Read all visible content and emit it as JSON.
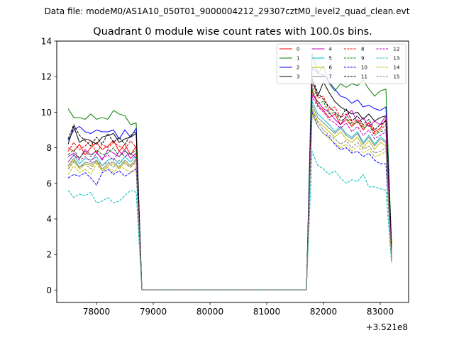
{
  "chart_data": {
    "type": "line",
    "suptitle": "Data file: modeM0/AS1A10_050T01_9000004212_29307cztM0_level2_quad_clean.evt",
    "title": "Quadrant 0 module wise count rates with 100.0s bins.",
    "xlabel": "",
    "ylabel": "",
    "x_offset_label": "+3.521e8",
    "xlim": [
      77300,
      83500
    ],
    "ylim": [
      -0.7,
      14
    ],
    "x_ticks": [
      78000,
      79000,
      80000,
      81000,
      82000,
      83000
    ],
    "x_tick_labels": [
      "78000",
      "79000",
      "80000",
      "81000",
      "82000",
      "83000"
    ],
    "y_ticks": [
      0,
      2,
      4,
      6,
      8,
      10,
      12,
      14
    ],
    "y_tick_labels": [
      "0",
      "2",
      "4",
      "6",
      "8",
      "10",
      "12",
      "14"
    ],
    "grid": false,
    "legend_position": "top-right",
    "legend_columns": 4,
    "x": [
      77500,
      77600,
      77700,
      77800,
      77900,
      78000,
      78100,
      78200,
      78300,
      78400,
      78500,
      78600,
      78700,
      78800,
      78900,
      79000,
      79100,
      79200,
      79300,
      79400,
      79500,
      79600,
      79700,
      79800,
      79900,
      80000,
      80100,
      80200,
      80300,
      80400,
      80500,
      80600,
      80700,
      80800,
      80900,
      81000,
      81100,
      81200,
      81300,
      81400,
      81500,
      81600,
      81700,
      81800,
      81900,
      82000,
      82100,
      82200,
      82300,
      82400,
      82500,
      82600,
      82700,
      82800,
      82900,
      83000,
      83100,
      83200
    ],
    "series": [
      {
        "name": "0",
        "color": "#ff0000",
        "style": "solid",
        "values": [
          8.0,
          7.8,
          8.2,
          7.6,
          8.0,
          8.3,
          7.9,
          8.1,
          8.4,
          7.8,
          8.2,
          7.6,
          8.1,
          0,
          0,
          0,
          0,
          0,
          0,
          0,
          0,
          0,
          0,
          0,
          0,
          0,
          0,
          0,
          0,
          0,
          0,
          0,
          0,
          0,
          0,
          0,
          0,
          0,
          0,
          0,
          0,
          0,
          0,
          11.2,
          10.4,
          10.1,
          9.7,
          9.9,
          9.3,
          9.6,
          9.2,
          9.5,
          9.0,
          9.4,
          8.9,
          9.1,
          9.6,
          2.0
        ]
      },
      {
        "name": "1",
        "color": "#008000",
        "style": "solid",
        "values": [
          10.2,
          9.7,
          9.7,
          9.6,
          9.9,
          9.6,
          9.7,
          9.6,
          10.1,
          9.9,
          9.8,
          9.3,
          9.4,
          0,
          0,
          0,
          0,
          0,
          0,
          0,
          0,
          0,
          0,
          0,
          0,
          0,
          0,
          0,
          0,
          0,
          0,
          0,
          0,
          0,
          0,
          0,
          0,
          0,
          0,
          0,
          0,
          0,
          0,
          13.3,
          12.2,
          12.6,
          11.6,
          11.2,
          11.6,
          11.4,
          11.6,
          11.5,
          11.8,
          11.3,
          10.9,
          11.2,
          11.3,
          2.5
        ]
      },
      {
        "name": "2",
        "color": "#0000ff",
        "style": "solid",
        "values": [
          8.4,
          9.0,
          9.2,
          8.9,
          8.8,
          9.0,
          8.9,
          8.9,
          9.0,
          8.5,
          9.0,
          8.6,
          9.1,
          0,
          0,
          0,
          0,
          0,
          0,
          0,
          0,
          0,
          0,
          0,
          0,
          0,
          0,
          0,
          0,
          0,
          0,
          0,
          0,
          0,
          0,
          0,
          0,
          0,
          0,
          0,
          0,
          0,
          0,
          12.5,
          12.2,
          12.1,
          11.7,
          11.3,
          10.9,
          10.8,
          10.5,
          10.7,
          10.3,
          10.4,
          10.2,
          10.1,
          10.3,
          2.3
        ]
      },
      {
        "name": "3",
        "color": "#000000",
        "style": "solid",
        "values": [
          8.2,
          9.2,
          8.3,
          8.5,
          8.4,
          8.2,
          8.6,
          8.7,
          8.8,
          8.3,
          8.5,
          8.6,
          8.8,
          0,
          0,
          0,
          0,
          0,
          0,
          0,
          0,
          0,
          0,
          0,
          0,
          0,
          0,
          0,
          0,
          0,
          0,
          0,
          0,
          0,
          0,
          0,
          0,
          0,
          0,
          0,
          0,
          0,
          0,
          11.8,
          10.9,
          11.7,
          11.1,
          10.6,
          10.3,
          10.1,
          9.9,
          10.0,
          9.6,
          9.9,
          9.5,
          9.7,
          9.8,
          2.6
        ]
      },
      {
        "name": "4",
        "color": "#bf00bf",
        "style": "solid",
        "values": [
          7.5,
          7.7,
          7.4,
          7.9,
          7.6,
          7.8,
          7.3,
          7.9,
          7.7,
          7.5,
          7.9,
          7.4,
          7.7,
          0,
          0,
          0,
          0,
          0,
          0,
          0,
          0,
          0,
          0,
          0,
          0,
          0,
          0,
          0,
          0,
          0,
          0,
          0,
          0,
          0,
          0,
          0,
          0,
          0,
          0,
          0,
          0,
          0,
          0,
          11.0,
          10.6,
          10.2,
          10.0,
          9.6,
          9.3,
          9.8,
          10.1,
          9.4,
          9.7,
          9.2,
          9.5,
          9.3,
          9.8,
          1.8
        ]
      },
      {
        "name": "5",
        "color": "#00bfbf",
        "style": "solid",
        "values": [
          7.2,
          7.6,
          7.1,
          7.4,
          7.3,
          7.5,
          7.0,
          7.3,
          7.4,
          7.1,
          7.5,
          7.2,
          7.6,
          0,
          0,
          0,
          0,
          0,
          0,
          0,
          0,
          0,
          0,
          0,
          0,
          0,
          0,
          0,
          0,
          0,
          0,
          0,
          0,
          0,
          0,
          0,
          0,
          0,
          0,
          0,
          0,
          0,
          0,
          10.6,
          9.9,
          9.6,
          9.3,
          8.9,
          9.2,
          8.8,
          8.6,
          8.9,
          8.3,
          8.7,
          8.2,
          8.6,
          8.4,
          1.7
        ]
      },
      {
        "name": "6",
        "color": "#bfbf00",
        "style": "solid",
        "values": [
          6.9,
          7.3,
          6.8,
          7.1,
          7.0,
          7.2,
          6.7,
          7.0,
          7.1,
          6.8,
          7.2,
          6.9,
          7.3,
          0,
          0,
          0,
          0,
          0,
          0,
          0,
          0,
          0,
          0,
          0,
          0,
          0,
          0,
          0,
          0,
          0,
          0,
          0,
          0,
          0,
          0,
          0,
          0,
          0,
          0,
          0,
          0,
          0,
          0,
          10.2,
          9.5,
          9.2,
          8.9,
          8.6,
          8.9,
          8.5,
          8.3,
          8.6,
          8.0,
          8.4,
          7.9,
          8.3,
          8.1,
          1.6
        ]
      },
      {
        "name": "7",
        "color": "#808080",
        "style": "solid",
        "values": [
          7.0,
          7.4,
          6.9,
          7.2,
          7.1,
          7.3,
          6.8,
          7.1,
          7.2,
          6.9,
          7.3,
          7.0,
          7.4,
          0,
          0,
          0,
          0,
          0,
          0,
          0,
          0,
          0,
          0,
          0,
          0,
          0,
          0,
          0,
          0,
          0,
          0,
          0,
          0,
          0,
          0,
          0,
          0,
          0,
          0,
          0,
          0,
          0,
          0,
          10.4,
          9.7,
          9.4,
          9.1,
          8.8,
          9.1,
          8.7,
          8.5,
          8.8,
          8.2,
          8.6,
          8.1,
          8.5,
          8.3,
          1.6
        ]
      },
      {
        "name": "8",
        "color": "#ff0000",
        "style": "dashed",
        "values": [
          7.8,
          8.3,
          7.9,
          8.1,
          8.4,
          7.7,
          8.2,
          8.0,
          8.3,
          8.1,
          7.9,
          8.4,
          8.0,
          0,
          0,
          0,
          0,
          0,
          0,
          0,
          0,
          0,
          0,
          0,
          0,
          0,
          0,
          0,
          0,
          0,
          0,
          0,
          0,
          0,
          0,
          0,
          0,
          0,
          0,
          0,
          0,
          0,
          0,
          11.5,
          10.8,
          10.9,
          10.1,
          10.3,
          9.7,
          9.9,
          9.4,
          9.6,
          9.2,
          9.4,
          8.8,
          9.0,
          9.3,
          2.1
        ]
      },
      {
        "name": "9",
        "color": "#008000",
        "style": "dashed",
        "values": [
          7.6,
          7.9,
          7.4,
          7.8,
          7.5,
          7.9,
          7.6,
          7.7,
          8.0,
          7.5,
          7.8,
          7.6,
          7.9,
          0,
          0,
          0,
          0,
          0,
          0,
          0,
          0,
          0,
          0,
          0,
          0,
          0,
          0,
          0,
          0,
          0,
          0,
          0,
          0,
          0,
          0,
          0,
          0,
          0,
          0,
          0,
          0,
          0,
          0,
          11.3,
          10.5,
          10.6,
          9.9,
          10.0,
          9.5,
          9.7,
          9.3,
          9.5,
          9.1,
          9.3,
          8.7,
          8.9,
          9.0,
          1.9
        ]
      },
      {
        "name": "10",
        "color": "#0000ff",
        "style": "dashed",
        "values": [
          6.3,
          6.5,
          6.4,
          6.6,
          6.3,
          5.9,
          6.6,
          6.8,
          6.5,
          6.7,
          6.4,
          6.6,
          6.8,
          0,
          0,
          0,
          0,
          0,
          0,
          0,
          0,
          0,
          0,
          0,
          0,
          0,
          0,
          0,
          0,
          0,
          0,
          0,
          0,
          0,
          0,
          0,
          0,
          0,
          0,
          0,
          0,
          0,
          0,
          10.0,
          9.2,
          8.8,
          8.6,
          8.2,
          7.9,
          8.0,
          7.7,
          7.8,
          7.5,
          7.7,
          7.3,
          7.1,
          7.1,
          1.7
        ]
      },
      {
        "name": "11",
        "color": "#000000",
        "style": "dashed",
        "values": [
          8.5,
          9.3,
          8.7,
          8.4,
          8.1,
          8.6,
          8.2,
          8.8,
          8.3,
          8.6,
          8.2,
          8.7,
          8.9,
          0,
          0,
          0,
          0,
          0,
          0,
          0,
          0,
          0,
          0,
          0,
          0,
          0,
          0,
          0,
          0,
          0,
          0,
          0,
          0,
          0,
          0,
          0,
          0,
          0,
          0,
          0,
          0,
          0,
          0,
          11.9,
          11.1,
          10.7,
          10.3,
          10.0,
          9.7,
          10.2,
          9.5,
          9.8,
          9.3,
          9.6,
          9.0,
          9.3,
          9.5,
          2.4
        ]
      },
      {
        "name": "12",
        "color": "#bf00bf",
        "style": "dashed",
        "values": [
          7.2,
          7.6,
          7.3,
          7.5,
          7.2,
          7.7,
          7.4,
          7.6,
          7.3,
          7.8,
          7.5,
          7.7,
          7.4,
          0,
          0,
          0,
          0,
          0,
          0,
          0,
          0,
          0,
          0,
          0,
          0,
          0,
          0,
          0,
          0,
          0,
          0,
          0,
          0,
          0,
          0,
          0,
          0,
          0,
          0,
          0,
          0,
          0,
          0,
          10.9,
          10.3,
          10.0,
          9.6,
          9.4,
          9.1,
          9.4,
          8.9,
          9.2,
          8.7,
          9.0,
          8.5,
          8.7,
          8.9,
          1.8
        ]
      },
      {
        "name": "13",
        "color": "#00bfbf",
        "style": "dashed",
        "values": [
          5.6,
          5.2,
          5.4,
          5.3,
          5.5,
          4.9,
          5.0,
          5.2,
          4.9,
          5.0,
          5.3,
          5.6,
          5.5,
          0,
          0,
          0,
          0,
          0,
          0,
          0,
          0,
          0,
          0,
          0,
          0,
          0,
          0,
          0,
          0,
          0,
          0,
          0,
          0,
          0,
          0,
          0,
          0,
          0,
          0,
          0,
          0,
          0,
          0,
          7.8,
          7.0,
          6.8,
          6.5,
          6.7,
          6.3,
          6.0,
          6.2,
          6.1,
          6.5,
          5.8,
          5.8,
          5.7,
          5.6,
          1.5
        ]
      },
      {
        "name": "14",
        "color": "#bfbf00",
        "style": "dashed",
        "values": [
          6.5,
          7.0,
          6.6,
          6.8,
          6.5,
          7.1,
          6.7,
          6.9,
          6.6,
          7.0,
          6.8,
          6.6,
          6.9,
          0,
          0,
          0,
          0,
          0,
          0,
          0,
          0,
          0,
          0,
          0,
          0,
          0,
          0,
          0,
          0,
          0,
          0,
          0,
          0,
          0,
          0,
          0,
          0,
          0,
          0,
          0,
          0,
          0,
          0,
          9.9,
          9.2,
          8.8,
          8.5,
          8.3,
          8.0,
          8.2,
          7.8,
          8.1,
          7.7,
          7.9,
          7.5,
          7.6,
          7.8,
          1.5
        ]
      },
      {
        "name": "15",
        "color": "#808080",
        "style": "dashed",
        "values": [
          6.8,
          7.2,
          6.9,
          7.1,
          6.8,
          7.3,
          7.0,
          7.2,
          6.9,
          7.3,
          7.1,
          6.9,
          7.2,
          0,
          0,
          0,
          0,
          0,
          0,
          0,
          0,
          0,
          0,
          0,
          0,
          0,
          0,
          0,
          0,
          0,
          0,
          0,
          0,
          0,
          0,
          0,
          0,
          0,
          0,
          0,
          0,
          0,
          0,
          10.1,
          9.4,
          9.0,
          8.7,
          8.5,
          8.2,
          8.4,
          8.0,
          8.3,
          7.9,
          8.1,
          7.7,
          7.8,
          8.0,
          1.6
        ]
      }
    ]
  }
}
